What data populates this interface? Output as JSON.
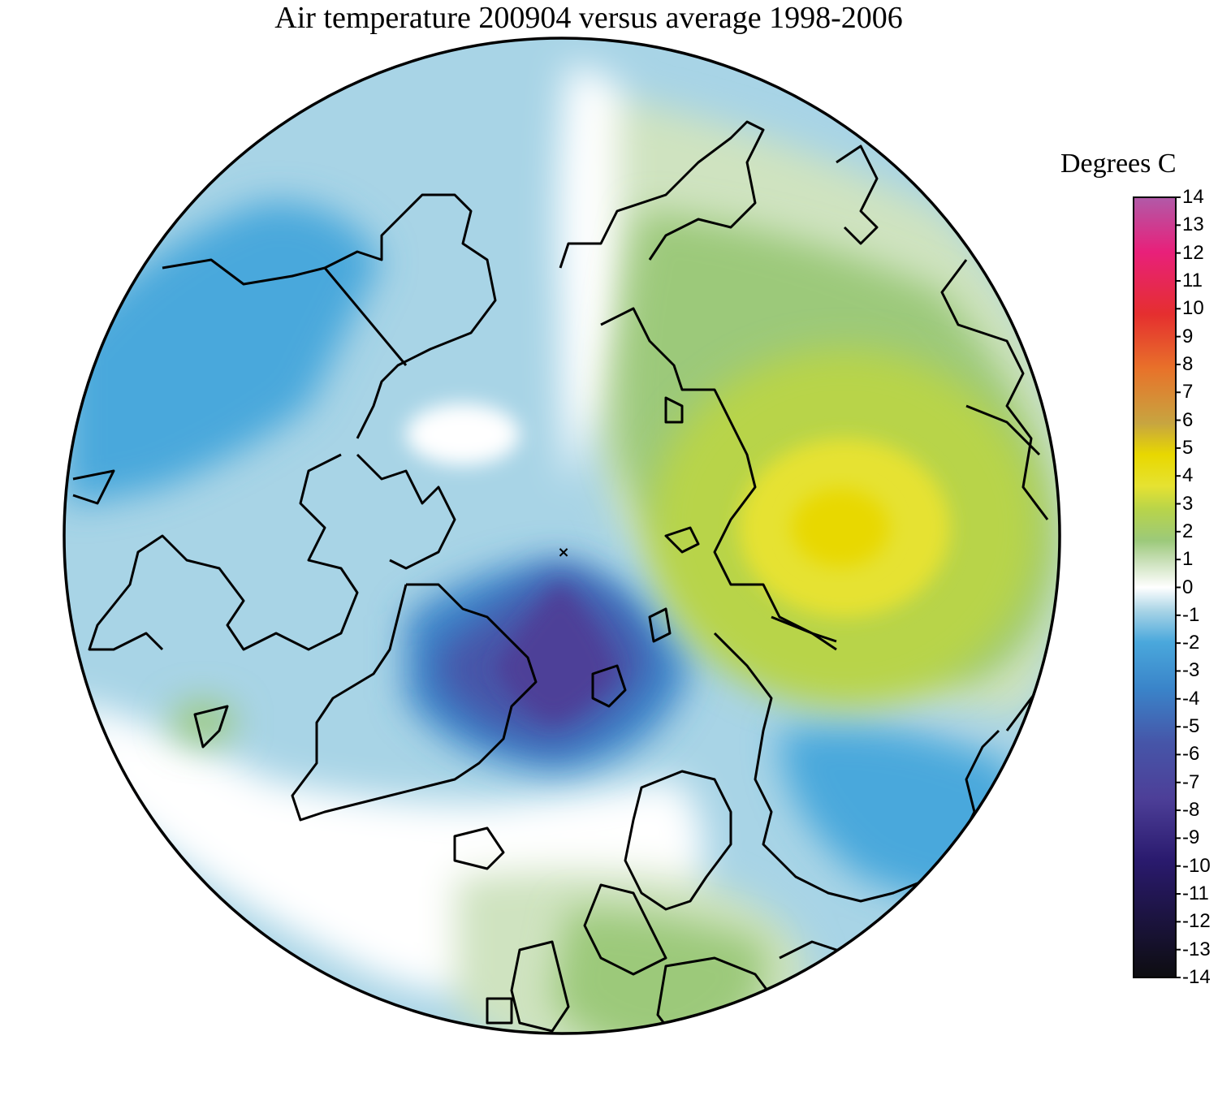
{
  "title": "Air temperature 200904 versus average 1998-2006",
  "legend": {
    "title": "Degrees C",
    "min": -14,
    "max": 14,
    "ticks": [
      "14",
      "13",
      "12",
      "11",
      "10",
      "9",
      "8",
      "7",
      "6",
      "5",
      "4",
      "3",
      "2",
      "1",
      "0",
      "-1",
      "-2",
      "-3",
      "-4",
      "-5",
      "-6",
      "-7",
      "-8",
      "-9",
      "-10",
      "-11",
      "-12",
      "-13",
      "-14"
    ]
  },
  "colors": {
    "neg14": "#0d0d10",
    "neg10": "#2a1a6e",
    "neg8": "#4d3f98",
    "neg6": "#4655a8",
    "neg4": "#3a84c9",
    "neg2": "#4aa8dc",
    "neg1": "#a8d4e6",
    "zero": "#ffffff",
    "pos1": "#cfe3c0",
    "pos2": "#9cc97a",
    "pos3": "#b8d44a",
    "pos4": "#e6e231",
    "pos5": "#e8d800",
    "pos6": "#c7a540",
    "pos8": "#e8722a",
    "pos10": "#e52f2f",
    "pos12": "#e8207a",
    "pos14": "#b15aa8"
  },
  "map": {
    "projection": "north polar stereographic",
    "pole_marker": "×"
  }
}
